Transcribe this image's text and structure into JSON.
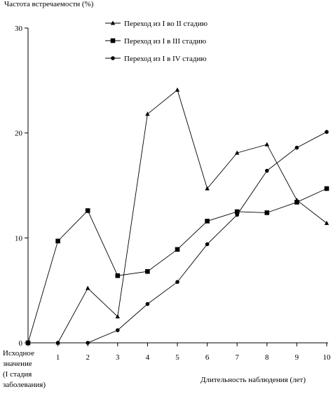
{
  "chart_data": {
    "type": "line",
    "ylabel": "Частота встречаемости (%)",
    "xlabel": "Длительность наблюдения (лет)",
    "x": [
      0,
      1,
      2,
      3,
      4,
      5,
      6,
      7,
      8,
      9,
      10
    ],
    "x_tick_labels": [
      "",
      "1",
      "2",
      "3",
      "4",
      "5",
      "6",
      "7",
      "8",
      "9",
      "10"
    ],
    "baseline_label_lines": [
      "Исходное",
      "значение",
      "(I стадия",
      "заболевания)"
    ],
    "y_ticks": [
      0,
      10,
      20,
      30
    ],
    "ylim": [
      0,
      30
    ],
    "grid": false,
    "legend_position": "top-right",
    "series": [
      {
        "name": "Переход из I во II стадию",
        "marker": "triangle",
        "values": [
          0,
          0,
          5.2,
          2.5,
          21.8,
          24.1,
          14.7,
          18.1,
          18.9,
          13.6,
          11.4
        ]
      },
      {
        "name": "Переход из I в III стадию",
        "marker": "square",
        "values": [
          0,
          9.7,
          12.6,
          6.4,
          6.8,
          8.9,
          11.6,
          12.5,
          12.4,
          13.4,
          14.7
        ]
      },
      {
        "name": "Переход из I в IV стадию",
        "marker": "circle",
        "values": [
          0,
          0,
          0,
          1.2,
          3.7,
          5.8,
          9.4,
          12.2,
          16.4,
          18.6,
          20.1
        ]
      }
    ]
  }
}
